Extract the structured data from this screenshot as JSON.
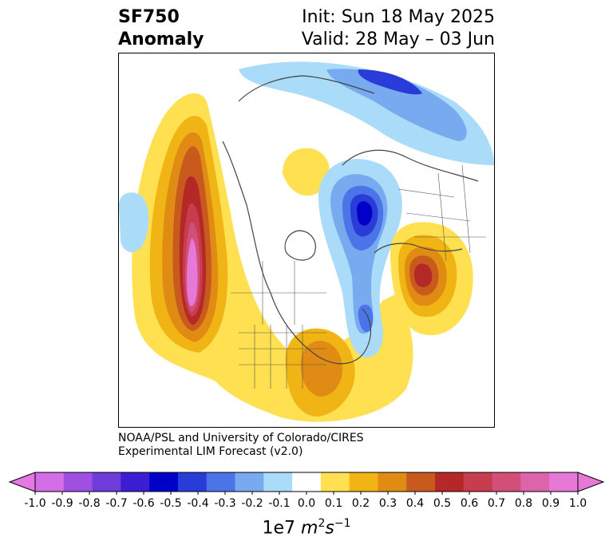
{
  "header": {
    "field": "SF750",
    "kind": "Anomaly",
    "init": "Init: Sun 18 May 2025",
    "valid": "Valid: 28 May – 03 Jun"
  },
  "credits": {
    "line1": "NOAA/PSL and University of Colorado/CIRES",
    "line2": "Experimental LIM Forecast (v2.0)"
  },
  "colorbar": {
    "ticks": [
      "-1.0",
      "-0.9",
      "-0.8",
      "-0.7",
      "-0.6",
      "-0.5",
      "-0.4",
      "-0.3",
      "-0.2",
      "-0.1",
      "0.0",
      "0.1",
      "0.2",
      "0.3",
      "0.4",
      "0.5",
      "0.6",
      "0.7",
      "0.8",
      "0.9",
      "1.0"
    ],
    "colors": [
      "#d26ee6",
      "#a050e0",
      "#6e3cd8",
      "#3c1ed2",
      "#0000c8",
      "#2a3cd8",
      "#4a74e8",
      "#78aaf0",
      "#aadcfa",
      "#ffffff",
      "#ffe050",
      "#f0b414",
      "#e08c14",
      "#c85a1e",
      "#b42828",
      "#c83c50",
      "#d25078",
      "#dc64aa",
      "#e678d8"
    ],
    "under_color": "#e678e6",
    "over_color": "#e678d8",
    "units_prefix": "1e7",
    "units_m": "m",
    "units_m_exp": "2",
    "units_s": "s",
    "units_s_exp": "−1"
  },
  "map": {
    "projection": "polar stereographic, Northern Hemisphere",
    "field_name": "750 hPa streamfunction anomaly",
    "features": [
      {
        "region": "NE Pacific / west of North America",
        "sign": "positive",
        "peak": 0.9
      },
      {
        "region": "central North Pacific",
        "sign": "negative",
        "peak": -0.2
      },
      {
        "region": "eastern North America",
        "sign": "positive",
        "peak": 0.4
      },
      {
        "region": "Scandinavia / Northern Europe",
        "sign": "negative",
        "peak": -0.6
      },
      {
        "region": "Eastern Europe / Black Sea",
        "sign": "positive",
        "peak": 0.6
      },
      {
        "region": "Siberian Arctic / NE Asia",
        "sign": "negative",
        "peak": -0.5
      },
      {
        "region": "Canadian Arctic / Greenland",
        "sign": "positive",
        "peak": 0.2
      },
      {
        "region": "North Atlantic",
        "sign": "negative",
        "peak": -0.4
      }
    ]
  }
}
